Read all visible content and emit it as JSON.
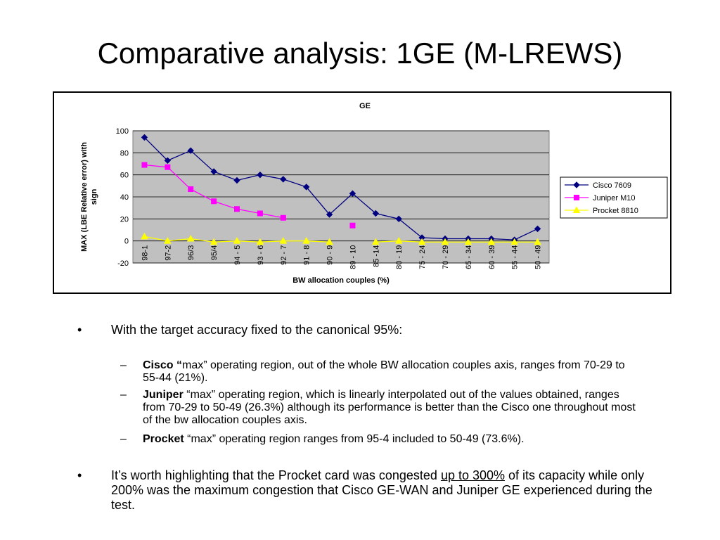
{
  "slide": {
    "title": "Comparative analysis: 1GE (M-LREWS)"
  },
  "chart_data": {
    "type": "line",
    "title": "GE",
    "xlabel": "BW allocation couples (%)",
    "ylabel": "MAX (LBE Relative error) with sign",
    "ylim": [
      -20,
      100
    ],
    "yticks": [
      100,
      80,
      60,
      40,
      20,
      0,
      -20
    ],
    "grid": true,
    "legend": "right",
    "categories": [
      "98-1",
      "97-2",
      "96/3",
      "95/4",
      "94 - 5",
      "93 - 6",
      "92 - 7",
      "91 - 8",
      "90 - 9",
      "89 - 10",
      "85 -14",
      "80 - 19",
      "75 - 24",
      "70 - 29",
      "65 - 34",
      "60 - 39",
      "55 - 44",
      "50 - 49"
    ],
    "series": [
      {
        "name": "Cisco 7609",
        "color": "#000080",
        "marker": "diamond",
        "values": [
          94,
          73,
          82,
          63,
          55,
          60,
          56,
          49,
          24,
          43,
          25,
          20,
          3,
          2,
          2,
          2,
          1,
          11
        ]
      },
      {
        "name": "Juniper M10",
        "color": "#ff00ff",
        "marker": "square",
        "values": [
          69,
          67,
          47,
          36,
          29,
          25,
          21,
          null,
          null,
          14,
          null,
          null,
          null,
          null,
          null,
          null,
          null,
          null
        ]
      },
      {
        "name": "Procket 8810",
        "color": "#ffff00",
        "marker": "triangle",
        "values": [
          4,
          0,
          2,
          -1,
          0,
          -1,
          0,
          0,
          -1,
          null,
          -1,
          0,
          -1,
          -1,
          -1,
          -1,
          -1,
          -1
        ]
      }
    ]
  },
  "bullets": {
    "b1": "With the target accuracy fixed to the canonical 95%:",
    "s1_bold": "Cisco “",
    "s1_text": "max” operating region, out of the whole BW allocation couples axis, ranges from 70-29 to 55-44 (21%).",
    "s2_bold": "Juniper",
    "s2_text": " “max”  operating region, which is linearly interpolated out of the values obtained, ranges from 70-29 to 50-49 (26.3%) although its performance is better than the Cisco one throughout most of the bw allocation couples axis.",
    "s3_bold": "Procket",
    "s3_text": " “max” operating region ranges from 95-4 included to 50-49 (73.6%).",
    "b2_pre": "It’s worth highlighting that the Procket card was congested ",
    "b2_under": "up to 300%",
    "b2_post": " of its capacity while only 200% was the maximum congestion that Cisco GE-WAN and Juniper GE experienced during the test.",
    "dot": "•",
    "dash": "–"
  }
}
